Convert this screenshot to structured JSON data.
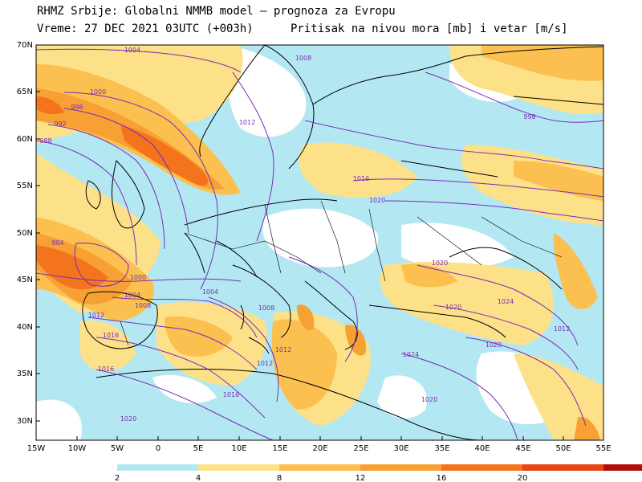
{
  "header": {
    "line1": "RHMZ Srbije: Globalni NMMB model — prognoza za Evropu",
    "line2_left": "Vreme: 27 DEC 2021 03UTC (+003h)",
    "line2_right": "Pritisak na nivou mora [mb] i vetar [m/s]"
  },
  "axes": {
    "lat_labels": [
      "70N",
      "65N",
      "60N",
      "55N",
      "50N",
      "45N",
      "40N",
      "35N",
      "30N"
    ],
    "lon_labels": [
      "15W",
      "10W",
      "5W",
      "0",
      "5E",
      "10E",
      "15E",
      "20E",
      "25E",
      "30E",
      "35E",
      "40E",
      "45E",
      "50E",
      "55E"
    ]
  },
  "isobar_labels": [
    {
      "text": "1004"
    },
    {
      "text": "1000"
    },
    {
      "text": "996"
    },
    {
      "text": "992"
    },
    {
      "text": "988"
    },
    {
      "text": "1012"
    },
    {
      "text": "1008"
    },
    {
      "text": "1016"
    },
    {
      "text": "1020"
    },
    {
      "text": "998"
    },
    {
      "text": "984"
    },
    {
      "text": "1000"
    },
    {
      "text": "1004"
    },
    {
      "text": "1008"
    },
    {
      "text": "1012"
    },
    {
      "text": "1016"
    },
    {
      "text": "1020"
    },
    {
      "text": "1024"
    },
    {
      "text": "1028"
    },
    {
      "text": "1012"
    },
    {
      "text": "1016"
    },
    {
      "text": "1004"
    },
    {
      "text": "1008"
    },
    {
      "text": "1012"
    },
    {
      "text": "1016"
    },
    {
      "text": "1020"
    },
    {
      "text": "1020"
    },
    {
      "text": "1024"
    },
    {
      "text": "1020"
    },
    {
      "text": "1012"
    }
  ],
  "legend": {
    "labels": [
      "2",
      "4",
      "8",
      "12",
      "16",
      "20"
    ],
    "colors": [
      "#b3e8f2",
      "#fde189",
      "#fbc04f",
      "#f7a033",
      "#f4741d",
      "#e84513",
      "#b50d0d"
    ]
  },
  "colors": {
    "sea_bg": "#ffffff",
    "wind_light": "#b3e8f2",
    "wind_mid": "#fde189",
    "wind_orange": "#fbc04f",
    "wind_strong": "#f7a033",
    "wind_very_strong": "#f4741d",
    "isobar": "#7a2bb8",
    "coast": "#000000"
  }
}
